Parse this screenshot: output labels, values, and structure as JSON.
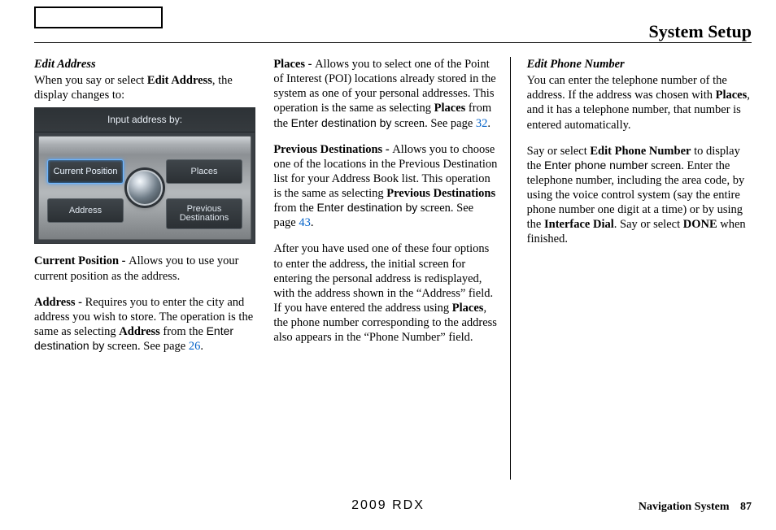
{
  "header": {
    "title": "System Setup"
  },
  "footer": {
    "center": "2009  RDX",
    "section": "Navigation System",
    "page": "87"
  },
  "screen": {
    "prompt": "Input address by:",
    "btn_tl": "Current Position",
    "btn_tr": "Places",
    "btn_bl": "Address",
    "btn_br": "Previous\nDestinations"
  },
  "col1": {
    "h1": "Edit Address",
    "p1_a": "When you say or select ",
    "p1_b": "Edit Address",
    "p1_c": ", the display changes to:",
    "p2_a": "Current Position - ",
    "p2_b": "Allows you to use your current position as the address.",
    "p3_a": "Address - ",
    "p3_b": "Requires you to enter the city and address you wish to store. The operation is the same as selecting ",
    "p3_c": "Address",
    "p3_d": " from the ",
    "p3_e": "Enter destination by",
    "p3_f": " screen. See page ",
    "p3_g": "26",
    "p3_h": "."
  },
  "col2": {
    "p1_a": "Places - ",
    "p1_b": "Allows you to select one of the Point of Interest (POI) locations already stored in the system as one of your personal addresses. This operation is the same as selecting ",
    "p1_c": "Places",
    "p1_d": " from the ",
    "p1_e": "Enter destination by",
    "p1_f": " screen. See page ",
    "p1_g": "32",
    "p1_h": ".",
    "p2_a": "Previous Destinations - ",
    "p2_b": "Allows you to choose one of the locations in the Previous Destination list for your Address Book list. This operation is the same as selecting ",
    "p2_c": "Previous Destinations",
    "p2_d": " from the ",
    "p2_e": "Enter destination by",
    "p2_f": " screen. See page ",
    "p2_g": "43",
    "p2_h": ".",
    "p3_a": "After you have used one of these four options to enter the address, the initial screen for entering the personal address is redisplayed, with the address shown in the “Address” field. If you have entered the address using ",
    "p3_b": "Places",
    "p3_c": ", the phone number corresponding to the address also appears in the “Phone Number” field."
  },
  "col3": {
    "h1": "Edit Phone Number",
    "p1_a": "You can enter the telephone number of the address. If the address was chosen with ",
    "p1_b": "Places",
    "p1_c": ", and it has a telephone number, that number is entered automatically.",
    "p2_a": "Say or select ",
    "p2_b": "Edit Phone Number",
    "p2_c": " to display the ",
    "p2_d": "Enter phone number",
    "p2_e": " screen. Enter the telephone number, including the area code, by using the voice control system (say the entire phone number one digit at a time) or by using the ",
    "p2_f": "Interface Dial",
    "p2_g": ". Say or select ",
    "p2_h": "DONE",
    "p2_i": " when finished."
  }
}
